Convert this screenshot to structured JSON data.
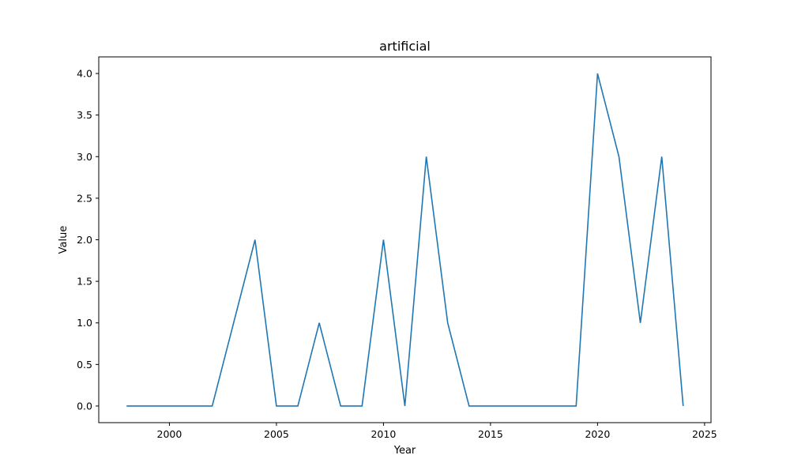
{
  "chart_data": {
    "type": "line",
    "title": "artificial",
    "xlabel": "Year",
    "ylabel": "Value",
    "xlim": [
      1996.7,
      2025.3
    ],
    "ylim": [
      -0.2,
      4.2
    ],
    "grid": false,
    "x_ticks": [
      2000,
      2005,
      2010,
      2015,
      2020,
      2025
    ],
    "y_ticks": [
      0.0,
      0.5,
      1.0,
      1.5,
      2.0,
      2.5,
      3.0,
      3.5,
      4.0
    ],
    "x_tick_labels": [
      "2000",
      "2005",
      "2010",
      "2015",
      "2020",
      "2025"
    ],
    "y_tick_labels": [
      "0.0",
      "0.5",
      "1.0",
      "1.5",
      "2.0",
      "2.5",
      "3.0",
      "3.5",
      "4.0"
    ],
    "series": [
      {
        "color": "#1f77b4",
        "x": [
          1998,
          1999,
          2000,
          2001,
          2002,
          2003,
          2004,
          2005,
          2006,
          2007,
          2008,
          2009,
          2010,
          2011,
          2012,
          2013,
          2014,
          2015,
          2016,
          2017,
          2018,
          2019,
          2020,
          2021,
          2022,
          2023,
          2024
        ],
        "values": [
          0,
          0,
          0,
          0,
          0,
          1,
          2,
          0,
          0,
          1,
          0,
          0,
          2,
          0,
          3,
          1,
          0,
          0,
          0,
          0,
          0,
          0,
          4,
          3,
          1,
          3,
          0
        ]
      }
    ]
  }
}
